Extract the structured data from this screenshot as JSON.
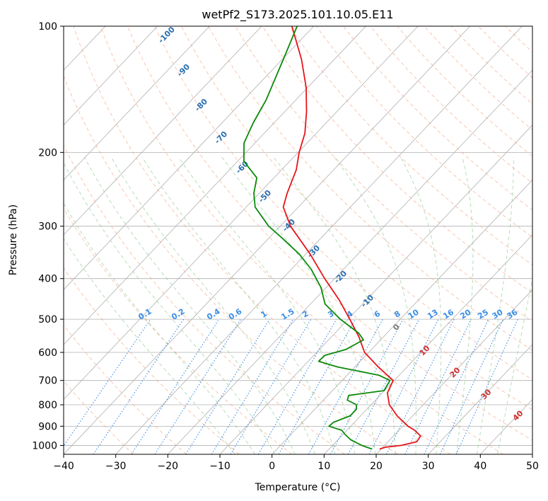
{
  "chart_data": {
    "type": "line",
    "title": "wetPf2_S173.2025.101.10.05.E11",
    "xlabel": "Temperature (°C)",
    "ylabel": "Pressure (hPa)",
    "xlim": [
      -40,
      50
    ],
    "ylim": [
      1050,
      100
    ],
    "y_scale": "log",
    "x_ticks": [
      "−40",
      "−30",
      "−20",
      "−10",
      "0",
      "10",
      "20",
      "30",
      "40",
      "50"
    ],
    "y_ticks": [
      {
        "p": 100,
        "label": "100"
      },
      {
        "p": 200,
        "label": "200"
      },
      {
        "p": 300,
        "label": "300"
      },
      {
        "p": 400,
        "label": "400"
      },
      {
        "p": 500,
        "label": "500"
      },
      {
        "p": 600,
        "label": "600"
      },
      {
        "p": 700,
        "label": "700"
      },
      {
        "p": 800,
        "label": "800"
      },
      {
        "p": 900,
        "label": "900"
      },
      {
        "p": 1000,
        "label": "1000"
      }
    ],
    "skew": true,
    "series": [
      {
        "color": "#e8141a",
        "points": [
          {
            "p": 1020,
            "t": 19.7
          },
          {
            "p": 1010,
            "t": 20.5
          },
          {
            "p": 1000,
            "t": 23.2
          },
          {
            "p": 980,
            "t": 25.5
          },
          {
            "p": 950,
            "t": 25.2
          },
          {
            "p": 920,
            "t": 23.0
          },
          {
            "p": 900,
            "t": 21.0
          },
          {
            "p": 850,
            "t": 17.0
          },
          {
            "p": 800,
            "t": 13.5
          },
          {
            "p": 750,
            "t": 11.0
          },
          {
            "p": 700,
            "t": 9.8
          },
          {
            "p": 650,
            "t": 4.5
          },
          {
            "p": 600,
            "t": -0.8
          },
          {
            "p": 550,
            "t": -4.8
          },
          {
            "p": 500,
            "t": -9.7
          },
          {
            "p": 450,
            "t": -15.2
          },
          {
            "p": 400,
            "t": -21.9
          },
          {
            "p": 350,
            "t": -29.1
          },
          {
            "p": 300,
            "t": -38.0
          },
          {
            "p": 270,
            "t": -42.9
          },
          {
            "p": 250,
            "t": -44.7
          },
          {
            "p": 220,
            "t": -47.2
          },
          {
            "p": 200,
            "t": -49.8
          },
          {
            "p": 180,
            "t": -52.2
          },
          {
            "p": 160,
            "t": -55.8
          },
          {
            "p": 140,
            "t": -60.3
          },
          {
            "p": 120,
            "t": -66.3
          },
          {
            "p": 100,
            "t": -74.2
          }
        ]
      },
      {
        "color": "#0a8a0a",
        "points": [
          {
            "p": 1020,
            "t": 18.2
          },
          {
            "p": 1000,
            "t": 15.6
          },
          {
            "p": 970,
            "t": 12.5
          },
          {
            "p": 940,
            "t": 10.3
          },
          {
            "p": 920,
            "t": 9.0
          },
          {
            "p": 900,
            "t": 5.8
          },
          {
            "p": 880,
            "t": 6.0
          },
          {
            "p": 850,
            "t": 8.0
          },
          {
            "p": 820,
            "t": 8.0
          },
          {
            "p": 800,
            "t": 7.2
          },
          {
            "p": 780,
            "t": 4.6
          },
          {
            "p": 760,
            "t": 4.0
          },
          {
            "p": 740,
            "t": 9.9
          },
          {
            "p": 700,
            "t": 9.2
          },
          {
            "p": 680,
            "t": 6.1
          },
          {
            "p": 650,
            "t": -3.3
          },
          {
            "p": 630,
            "t": -8.0
          },
          {
            "p": 610,
            "t": -7.9
          },
          {
            "p": 590,
            "t": -4.9
          },
          {
            "p": 560,
            "t": -3.3
          },
          {
            "p": 540,
            "t": -5.4
          },
          {
            "p": 500,
            "t": -11.5
          },
          {
            "p": 460,
            "t": -17.2
          },
          {
            "p": 420,
            "t": -21.0
          },
          {
            "p": 380,
            "t": -26.2
          },
          {
            "p": 350,
            "t": -31.2
          },
          {
            "p": 320,
            "t": -37.5
          },
          {
            "p": 300,
            "t": -42.2
          },
          {
            "p": 270,
            "t": -48.3
          },
          {
            "p": 250,
            "t": -51.1
          },
          {
            "p": 230,
            "t": -53.3
          },
          {
            "p": 210,
            "t": -58.8
          },
          {
            "p": 190,
            "t": -62.1
          },
          {
            "p": 170,
            "t": -64.0
          },
          {
            "p": 150,
            "t": -65.7
          },
          {
            "p": 120,
            "t": -69.8
          },
          {
            "p": 100,
            "t": -73.2
          }
        ]
      }
    ],
    "mixing_ratio_labels": [
      "0.1",
      "0.2",
      "0.4",
      "0.6",
      "1",
      "1.5",
      "2",
      "3",
      "4",
      "6",
      "8",
      "10",
      "13",
      "16",
      "20",
      "25",
      "30",
      "36"
    ],
    "dry_adiabat_labels": [
      "-100",
      "-90",
      "-80",
      "-70",
      "-60",
      "-50",
      "-40",
      "-30",
      "-20",
      "-10"
    ],
    "moist_adiabat_labels": [
      "0",
      "10",
      "20",
      "30",
      "40"
    ],
    "grid": true
  }
}
